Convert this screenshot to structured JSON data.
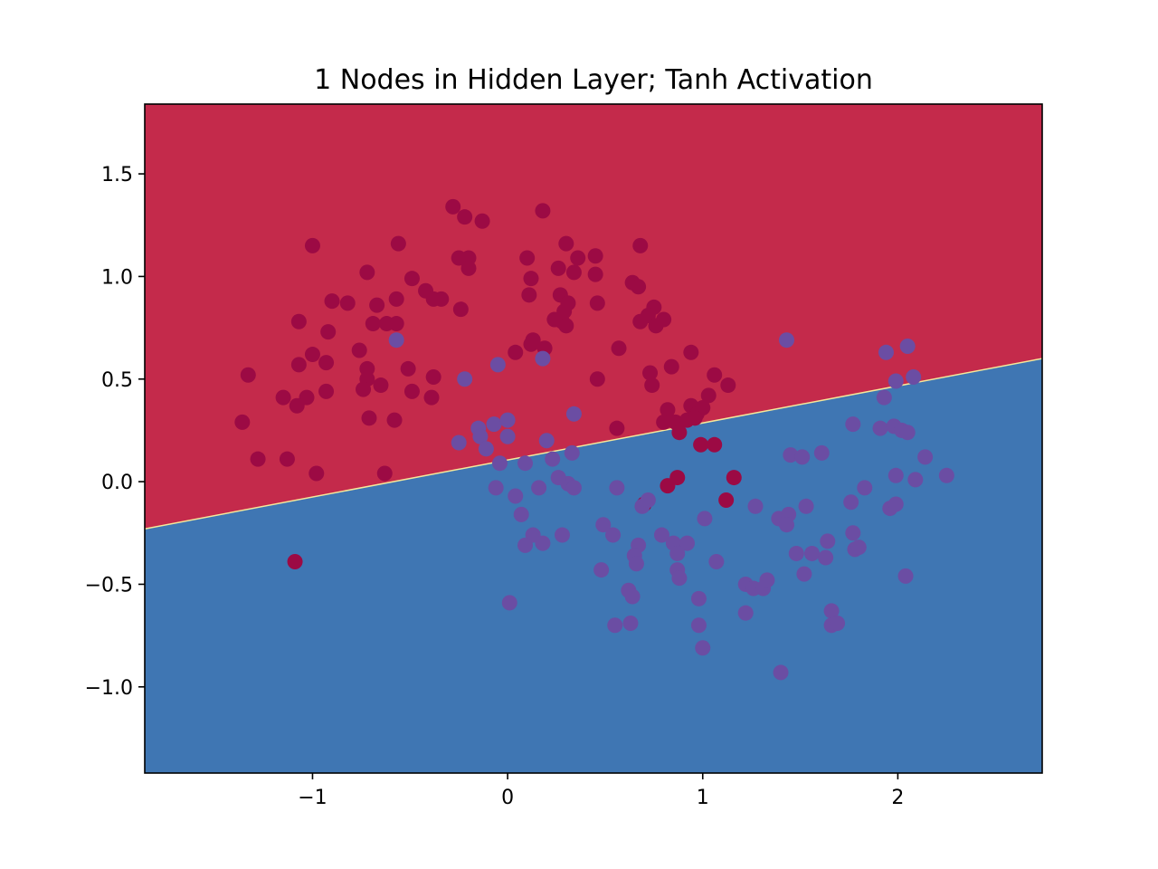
{
  "chart_data": {
    "type": "scatter",
    "title": "1 Nodes in Hidden Layer; Tanh Activation",
    "xlabel": "",
    "ylabel": "",
    "xlim": [
      -1.86,
      2.74
    ],
    "ylim": [
      -1.42,
      1.84
    ],
    "xticks": [
      -1,
      0,
      1,
      2
    ],
    "xtick_labels": [
      "−1",
      "0",
      "1",
      "2"
    ],
    "yticks": [
      -1.0,
      -0.5,
      0.0,
      0.5,
      1.0,
      1.5
    ],
    "ytick_labels": [
      "−1.0",
      "−0.5",
      "0.0",
      "0.5",
      "1.0",
      "1.5"
    ],
    "grid": false,
    "legend": "none",
    "decision_boundary": {
      "line": [
        [
          -1.86,
          -0.23
        ],
        [
          2.74,
          0.6
        ]
      ],
      "upper_region_color": "#c42a4b",
      "lower_region_color": "#3f76b3",
      "edge_color": "#f5e89a"
    },
    "series": [
      {
        "color": "#9c0a44",
        "points": [
          [
            -0.28,
            1.34
          ],
          [
            -0.22,
            1.29
          ],
          [
            -0.13,
            1.27
          ],
          [
            0.18,
            1.32
          ],
          [
            -1.0,
            1.15
          ],
          [
            -0.56,
            1.16
          ],
          [
            -0.25,
            1.09
          ],
          [
            -0.2,
            1.09
          ],
          [
            -0.2,
            1.04
          ],
          [
            0.1,
            1.09
          ],
          [
            0.3,
            1.16
          ],
          [
            0.36,
            1.09
          ],
          [
            0.26,
            1.04
          ],
          [
            0.45,
            1.1
          ],
          [
            0.68,
            1.15
          ],
          [
            -0.72,
            1.02
          ],
          [
            -0.49,
            0.99
          ],
          [
            -0.42,
            0.93
          ],
          [
            -0.38,
            0.89
          ],
          [
            -0.34,
            0.89
          ],
          [
            -0.24,
            0.84
          ],
          [
            0.12,
            0.99
          ],
          [
            0.34,
            1.02
          ],
          [
            0.45,
            1.01
          ],
          [
            0.64,
            0.97
          ],
          [
            0.67,
            0.95
          ],
          [
            0.11,
            0.91
          ],
          [
            0.27,
            0.91
          ],
          [
            0.31,
            0.87
          ],
          [
            0.46,
            0.87
          ],
          [
            0.75,
            0.85
          ],
          [
            -0.9,
            0.88
          ],
          [
            -0.82,
            0.87
          ],
          [
            -0.57,
            0.89
          ],
          [
            -0.67,
            0.86
          ],
          [
            -1.07,
            0.78
          ],
          [
            -0.92,
            0.73
          ],
          [
            -0.69,
            0.77
          ],
          [
            -0.62,
            0.77
          ],
          [
            -0.57,
            0.77
          ],
          [
            0.24,
            0.79
          ],
          [
            0.29,
            0.83
          ],
          [
            0.28,
            0.78
          ],
          [
            0.3,
            0.76
          ],
          [
            0.68,
            0.78
          ],
          [
            0.72,
            0.81
          ],
          [
            0.8,
            0.79
          ],
          [
            0.76,
            0.76
          ],
          [
            -1.0,
            0.62
          ],
          [
            -0.76,
            0.64
          ],
          [
            -0.93,
            0.58
          ],
          [
            -1.07,
            0.57
          ],
          [
            -0.72,
            0.55
          ],
          [
            0.13,
            0.69
          ],
          [
            0.12,
            0.67
          ],
          [
            0.19,
            0.65
          ],
          [
            0.04,
            0.63
          ],
          [
            0.57,
            0.65
          ],
          [
            0.94,
            0.63
          ],
          [
            -0.51,
            0.55
          ],
          [
            -0.72,
            0.5
          ],
          [
            -0.65,
            0.47
          ],
          [
            -0.38,
            0.51
          ],
          [
            -1.33,
            0.52
          ],
          [
            0.46,
            0.5
          ],
          [
            0.73,
            0.53
          ],
          [
            0.84,
            0.56
          ],
          [
            1.06,
            0.52
          ],
          [
            1.13,
            0.47
          ],
          [
            0.74,
            0.47
          ],
          [
            -0.74,
            0.45
          ],
          [
            -0.49,
            0.44
          ],
          [
            -0.93,
            0.44
          ],
          [
            -1.03,
            0.41
          ],
          [
            -1.15,
            0.41
          ],
          [
            -0.39,
            0.41
          ],
          [
            1.03,
            0.42
          ],
          [
            -1.08,
            0.37
          ],
          [
            0.82,
            0.35
          ],
          [
            0.94,
            0.37
          ],
          [
            0.97,
            0.33
          ],
          [
            1.0,
            0.36
          ],
          [
            -1.36,
            0.29
          ],
          [
            -0.71,
            0.31
          ],
          [
            -0.58,
            0.3
          ],
          [
            0.56,
            0.26
          ],
          [
            0.8,
            0.29
          ],
          [
            0.86,
            0.29
          ],
          [
            0.92,
            0.3
          ],
          [
            0.96,
            0.31
          ],
          [
            0.88,
            0.24
          ],
          [
            -1.28,
            0.11
          ],
          [
            -1.13,
            0.11
          ],
          [
            -0.98,
            0.04
          ],
          [
            -0.63,
            0.04
          ],
          [
            0.99,
            0.18
          ],
          [
            1.06,
            0.18
          ],
          [
            0.87,
            0.02
          ],
          [
            1.16,
            0.02
          ],
          [
            0.82,
            -0.02
          ],
          [
            1.12,
            -0.09
          ],
          [
            0.7,
            -0.11
          ],
          [
            -1.09,
            -0.39
          ]
        ]
      },
      {
        "color": "#6b4da3",
        "points": [
          [
            -0.57,
            0.69
          ],
          [
            -0.22,
            0.5
          ],
          [
            -0.05,
            0.57
          ],
          [
            0.18,
            0.6
          ],
          [
            1.43,
            0.69
          ],
          [
            1.94,
            0.63
          ],
          [
            2.05,
            0.66
          ],
          [
            1.99,
            0.49
          ],
          [
            2.08,
            0.51
          ],
          [
            1.93,
            0.41
          ],
          [
            0.34,
            0.33
          ],
          [
            -0.15,
            0.26
          ],
          [
            -0.07,
            0.28
          ],
          [
            0.0,
            0.3
          ],
          [
            -0.14,
            0.22
          ],
          [
            0.0,
            0.22
          ],
          [
            -0.25,
            0.19
          ],
          [
            -0.11,
            0.16
          ],
          [
            0.2,
            0.2
          ],
          [
            0.33,
            0.14
          ],
          [
            0.23,
            0.11
          ],
          [
            1.77,
            0.28
          ],
          [
            1.91,
            0.26
          ],
          [
            1.98,
            0.27
          ],
          [
            2.02,
            0.25
          ],
          [
            2.05,
            0.24
          ],
          [
            1.45,
            0.13
          ],
          [
            1.51,
            0.12
          ],
          [
            1.61,
            0.14
          ],
          [
            2.14,
            0.12
          ],
          [
            -0.04,
            0.09
          ],
          [
            0.09,
            0.09
          ],
          [
            0.31,
            -0.01
          ],
          [
            0.26,
            0.02
          ],
          [
            0.34,
            -0.03
          ],
          [
            0.16,
            -0.03
          ],
          [
            0.56,
            -0.03
          ],
          [
            1.99,
            0.03
          ],
          [
            2.09,
            0.01
          ],
          [
            2.25,
            0.03
          ],
          [
            1.83,
            -0.03
          ],
          [
            -0.06,
            -0.03
          ],
          [
            0.04,
            -0.07
          ],
          [
            0.69,
            -0.12
          ],
          [
            0.72,
            -0.09
          ],
          [
            1.76,
            -0.1
          ],
          [
            1.96,
            -0.13
          ],
          [
            1.99,
            -0.11
          ],
          [
            0.07,
            -0.16
          ],
          [
            1.27,
            -0.12
          ],
          [
            1.53,
            -0.12
          ],
          [
            1.01,
            -0.18
          ],
          [
            0.49,
            -0.21
          ],
          [
            1.39,
            -0.18
          ],
          [
            1.44,
            -0.16
          ],
          [
            1.43,
            -0.21
          ],
          [
            0.13,
            -0.26
          ],
          [
            0.28,
            -0.26
          ],
          [
            0.54,
            -0.26
          ],
          [
            0.79,
            -0.26
          ],
          [
            1.64,
            -0.29
          ],
          [
            1.77,
            -0.25
          ],
          [
            0.18,
            -0.3
          ],
          [
            0.09,
            -0.31
          ],
          [
            0.67,
            -0.31
          ],
          [
            0.85,
            -0.3
          ],
          [
            0.92,
            -0.3
          ],
          [
            1.78,
            -0.33
          ],
          [
            1.8,
            -0.32
          ],
          [
            0.65,
            -0.36
          ],
          [
            0.87,
            -0.35
          ],
          [
            1.48,
            -0.35
          ],
          [
            1.56,
            -0.35
          ],
          [
            1.63,
            -0.37
          ],
          [
            0.66,
            -0.4
          ],
          [
            1.07,
            -0.39
          ],
          [
            0.48,
            -0.43
          ],
          [
            0.87,
            -0.43
          ],
          [
            0.88,
            -0.47
          ],
          [
            1.52,
            -0.45
          ],
          [
            2.04,
            -0.46
          ],
          [
            1.22,
            -0.5
          ],
          [
            1.26,
            -0.52
          ],
          [
            1.31,
            -0.52
          ],
          [
            1.33,
            -0.48
          ],
          [
            0.62,
            -0.53
          ],
          [
            0.64,
            -0.56
          ],
          [
            0.98,
            -0.57
          ],
          [
            0.01,
            -0.59
          ],
          [
            1.66,
            -0.63
          ],
          [
            1.22,
            -0.64
          ],
          [
            0.55,
            -0.7
          ],
          [
            0.63,
            -0.69
          ],
          [
            0.98,
            -0.7
          ],
          [
            1.66,
            -0.7
          ],
          [
            1.69,
            -0.69
          ],
          [
            1.0,
            -0.81
          ],
          [
            1.4,
            -0.93
          ]
        ]
      }
    ]
  }
}
